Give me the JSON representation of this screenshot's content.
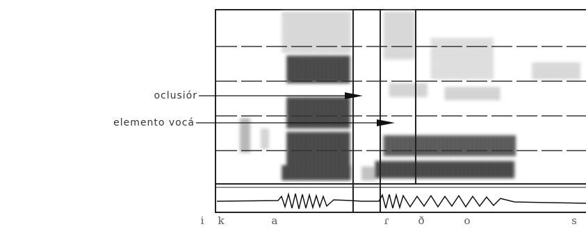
{
  "labels": {
    "occlusion": "oclusiór",
    "vocalic": "elemento vocá"
  },
  "segments": [
    "i",
    "k",
    "a",
    "ɾ",
    "ð",
    "o",
    "s"
  ]
}
